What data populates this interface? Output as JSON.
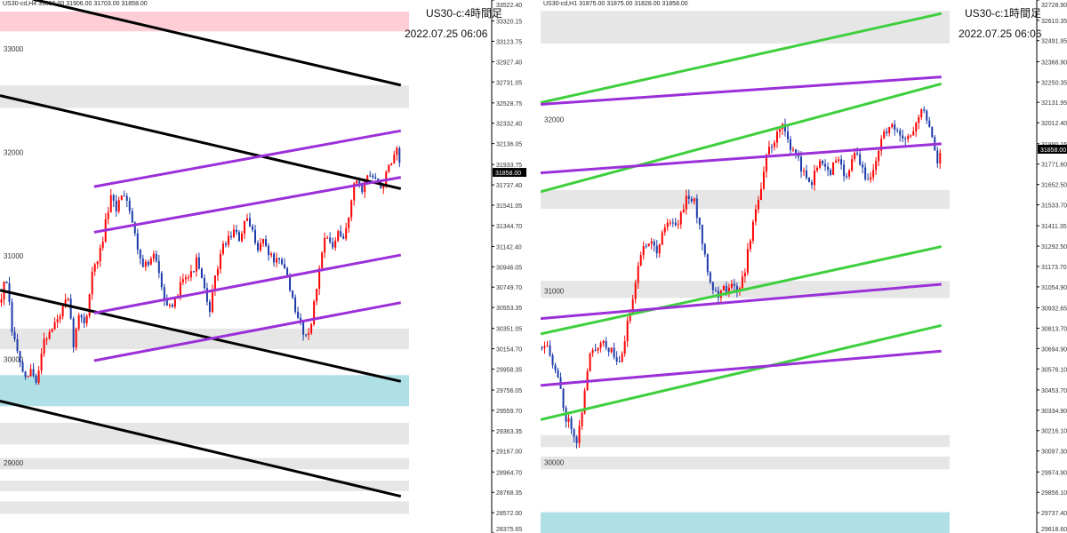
{
  "colors": {
    "background": "#ffffff",
    "bull": "#ff0000",
    "bear": "#1c3aa9",
    "price_tag_bg": "#000000",
    "price_tag_fg": "#ffffff",
    "black_line": "#000000",
    "purple_line": "#9b30d9",
    "green_line": "#3ecf3e",
    "zone_grey": "#e6e6e6",
    "zone_pink": "#ffcdd5",
    "zone_cyan": "#aee0e6",
    "axis_text": "#333333"
  },
  "chart_data": [
    {
      "type": "candlestick",
      "header": "US30-cd,H4  31858.00 31906.00 31703.00 31858.00",
      "title": "US30-c:4時間足",
      "date": "2022.07.25 06:06",
      "ylim": [
        28375.65,
        33522.4
      ],
      "x_range": [
        0,
        100
      ],
      "y_ticks": [
        "33522.40",
        "33320.15",
        "33123.75",
        "32927.40",
        "32731.05",
        "32528.75",
        "32332.40",
        "32136.05",
        "31933.75",
        "31737.40",
        "31541.05",
        "31344.70",
        "31142.40",
        "30946.05",
        "30749.70",
        "30553.35",
        "30351.05",
        "30154.70",
        "29958.35",
        "29756.05",
        "29559.70",
        "29363.35",
        "29167.00",
        "28964.70",
        "28768.35",
        "28572.00",
        "28375.65"
      ],
      "grid_labels": [
        {
          "value": 33000,
          "text": "33000"
        },
        {
          "value": 32000,
          "text": "32000"
        },
        {
          "value": 31000,
          "text": "31000"
        },
        {
          "value": 30000,
          "text": "30000"
        },
        {
          "value": 29000,
          "text": "29000"
        }
      ],
      "current_price": 31858.0,
      "current_price_label": "31858.00",
      "zones": [
        {
          "from": 33220,
          "to": 33410,
          "color": "pink"
        },
        {
          "from": 32480,
          "to": 32700,
          "color": "grey"
        },
        {
          "from": 30150,
          "to": 30350,
          "color": "grey"
        },
        {
          "from": 29600,
          "to": 29900,
          "color": "cyan"
        },
        {
          "from": 29230,
          "to": 29440,
          "color": "grey"
        },
        {
          "from": 28990,
          "to": 29100,
          "color": "grey"
        },
        {
          "from": 28780,
          "to": 28880,
          "color": "grey"
        },
        {
          "from": 28560,
          "to": 28680,
          "color": "grey"
        }
      ],
      "trendlines": [
        {
          "color": "black",
          "x1": 8,
          "y1": 33530,
          "x2": 98,
          "y2": 32700
        },
        {
          "color": "black",
          "x1": 0,
          "y1": 32600,
          "x2": 98,
          "y2": 31700
        },
        {
          "color": "black",
          "x1": 0,
          "y1": 30720,
          "x2": 98,
          "y2": 29840
        },
        {
          "color": "black",
          "x1": 0,
          "y1": 29650,
          "x2": 98,
          "y2": 28730
        },
        {
          "color": "purple",
          "x1": 23,
          "y1": 31720,
          "x2": 98,
          "y2": 32260
        },
        {
          "color": "purple",
          "x1": 23,
          "y1": 31280,
          "x2": 98,
          "y2": 31810
        },
        {
          "color": "purple",
          "x1": 23,
          "y1": 30500,
          "x2": 98,
          "y2": 31060
        },
        {
          "color": "purple",
          "x1": 23,
          "y1": 30040,
          "x2": 98,
          "y2": 30600
        }
      ],
      "price_path": [
        [
          0,
          30600
        ],
        [
          1.5,
          30850
        ],
        [
          3,
          30300
        ],
        [
          4.5,
          30100
        ],
        [
          6,
          29820
        ],
        [
          7.5,
          29950
        ],
        [
          9,
          29800
        ],
        [
          10.5,
          30250
        ],
        [
          12,
          30300
        ],
        [
          13.5,
          30400
        ],
        [
          15,
          30500
        ],
        [
          16.5,
          30650
        ],
        [
          18,
          30200
        ],
        [
          19.5,
          30500
        ],
        [
          21,
          30400
        ],
        [
          22.5,
          30900
        ],
        [
          24,
          31000
        ],
        [
          25.5,
          31300
        ],
        [
          27,
          31600
        ],
        [
          28.5,
          31500
        ],
        [
          30,
          31700
        ],
        [
          31.5,
          31550
        ],
        [
          33,
          31250
        ],
        [
          34.5,
          31000
        ],
        [
          36,
          30950
        ],
        [
          37.5,
          31050
        ],
        [
          39,
          30900
        ],
        [
          40.5,
          30600
        ],
        [
          42,
          30500
        ],
        [
          43.5,
          30700
        ],
        [
          45,
          30900
        ],
        [
          46.5,
          30850
        ],
        [
          48,
          31000
        ],
        [
          49.5,
          30800
        ],
        [
          51,
          30500
        ],
        [
          52.5,
          30800
        ],
        [
          54,
          31100
        ],
        [
          55.5,
          31200
        ],
        [
          57,
          31300
        ],
        [
          58.5,
          31200
        ],
        [
          60,
          31400
        ],
        [
          61.5,
          31300
        ],
        [
          63,
          31150
        ],
        [
          64.5,
          31200
        ],
        [
          66,
          31050
        ],
        [
          67.5,
          31000
        ],
        [
          69,
          30950
        ],
        [
          70.5,
          30850
        ],
        [
          72,
          30500
        ],
        [
          73.5,
          30400
        ],
        [
          75,
          30250
        ],
        [
          76.5,
          30500
        ],
        [
          78,
          30900
        ],
        [
          79.5,
          31300
        ],
        [
          81,
          31100
        ],
        [
          82.5,
          31250
        ],
        [
          84,
          31200
        ],
        [
          85.5,
          31500
        ],
        [
          87,
          31800
        ],
        [
          88.5,
          31700
        ],
        [
          90,
          31850
        ],
        [
          91.5,
          31800
        ],
        [
          93,
          31700
        ],
        [
          94.5,
          31850
        ],
        [
          96,
          31950
        ],
        [
          97,
          32050
        ],
        [
          98,
          31858
        ]
      ]
    },
    {
      "type": "candlestick",
      "header": "US30-cd,H1  31875.00 31875.00 31828.00 31858.00",
      "title": "US30-c:1時間足",
      "date": "2022.07.25 06:06",
      "ylim": [
        29618.6,
        32728.9
      ],
      "x_range": [
        0,
        100
      ],
      "y_ticks": [
        "32728.90",
        "32610.35",
        "32491.95",
        "32368.90",
        "32250.35",
        "32131.95",
        "32012.40",
        "31890.15",
        "31771.60",
        "31652.50",
        "31533.70",
        "31411.35",
        "31292.50",
        "31173.70",
        "31054.90",
        "30932.65",
        "30813.70",
        "30694.90",
        "30576.10",
        "30453.70",
        "30334.90",
        "30216.10",
        "30097.30",
        "29974.90",
        "29856.10",
        "29737.40",
        "29618.60"
      ],
      "grid_labels": [
        {
          "value": 32000,
          "text": "32000"
        },
        {
          "value": 31000,
          "text": "31000"
        },
        {
          "value": 30000,
          "text": "30000"
        }
      ],
      "current_price": 31858.0,
      "current_price_label": "31858.00",
      "zones": [
        {
          "from": 32475,
          "to": 32665,
          "color": "grey"
        },
        {
          "from": 31510,
          "to": 31620,
          "color": "grey"
        },
        {
          "from": 30990,
          "to": 31090,
          "color": "grey"
        },
        {
          "from": 30120,
          "to": 30190,
          "color": "grey"
        },
        {
          "from": 29990,
          "to": 30065,
          "color": "grey"
        },
        {
          "from": 29618,
          "to": 29740,
          "color": "cyan"
        }
      ],
      "trendlines": [
        {
          "color": "green",
          "x1": 0,
          "y1": 32130,
          "x2": 98,
          "y2": 32650
        },
        {
          "color": "green",
          "x1": 0,
          "y1": 31610,
          "x2": 98,
          "y2": 32240
        },
        {
          "color": "green",
          "x1": 0,
          "y1": 30780,
          "x2": 98,
          "y2": 31290
        },
        {
          "color": "green",
          "x1": 0,
          "y1": 30280,
          "x2": 98,
          "y2": 30830
        },
        {
          "color": "purple",
          "x1": 0,
          "y1": 31720,
          "x2": 98,
          "y2": 31890
        },
        {
          "color": "purple",
          "x1": 0,
          "y1": 30870,
          "x2": 98,
          "y2": 31070
        },
        {
          "color": "purple",
          "x1": 0,
          "y1": 30480,
          "x2": 98,
          "y2": 30680
        },
        {
          "color": "purple",
          "x1": 0,
          "y1": 32120,
          "x2": 98,
          "y2": 32280
        }
      ],
      "price_path": [
        [
          0,
          30700
        ],
        [
          1.5,
          30750
        ],
        [
          3,
          30600
        ],
        [
          4.5,
          30500
        ],
        [
          6,
          30300
        ],
        [
          7.5,
          30250
        ],
        [
          9,
          30150
        ],
        [
          10.5,
          30400
        ],
        [
          12,
          30650
        ],
        [
          13.5,
          30700
        ],
        [
          15,
          30750
        ],
        [
          16.5,
          30700
        ],
        [
          18,
          30650
        ],
        [
          19.5,
          30600
        ],
        [
          21,
          30800
        ],
        [
          22.5,
          31000
        ],
        [
          24,
          31200
        ],
        [
          25.5,
          31300
        ],
        [
          27,
          31350
        ],
        [
          28.5,
          31250
        ],
        [
          30,
          31400
        ],
        [
          31.5,
          31450
        ],
        [
          33,
          31400
        ],
        [
          34.5,
          31500
        ],
        [
          36,
          31600
        ],
        [
          37.5,
          31550
        ],
        [
          39,
          31400
        ],
        [
          40.5,
          31200
        ],
        [
          42,
          31050
        ],
        [
          43.5,
          31000
        ],
        [
          45,
          31050
        ],
        [
          46.5,
          31050
        ],
        [
          48,
          31050
        ],
        [
          49.5,
          31100
        ],
        [
          51,
          31300
        ],
        [
          52.5,
          31500
        ],
        [
          54,
          31650
        ],
        [
          55.5,
          31850
        ],
        [
          57,
          31900
        ],
        [
          58.5,
          32000
        ],
        [
          60,
          31950
        ],
        [
          61.5,
          31850
        ],
        [
          63,
          31800
        ],
        [
          64.5,
          31700
        ],
        [
          66,
          31650
        ],
        [
          67.5,
          31750
        ],
        [
          69,
          31800
        ],
        [
          70.5,
          31700
        ],
        [
          72,
          31800
        ],
        [
          73.5,
          31750
        ],
        [
          75,
          31700
        ],
        [
          76.5,
          31850
        ],
        [
          78,
          31800
        ],
        [
          79.5,
          31650
        ],
        [
          81,
          31700
        ],
        [
          82.5,
          31850
        ],
        [
          84,
          31950
        ],
        [
          85.5,
          32000
        ],
        [
          87,
          31950
        ],
        [
          88.5,
          31900
        ],
        [
          90,
          31950
        ],
        [
          91.5,
          32000
        ],
        [
          93,
          32100
        ],
        [
          94.5,
          32050
        ],
        [
          96,
          31900
        ],
        [
          97,
          31800
        ],
        [
          98,
          31858
        ]
      ]
    }
  ]
}
